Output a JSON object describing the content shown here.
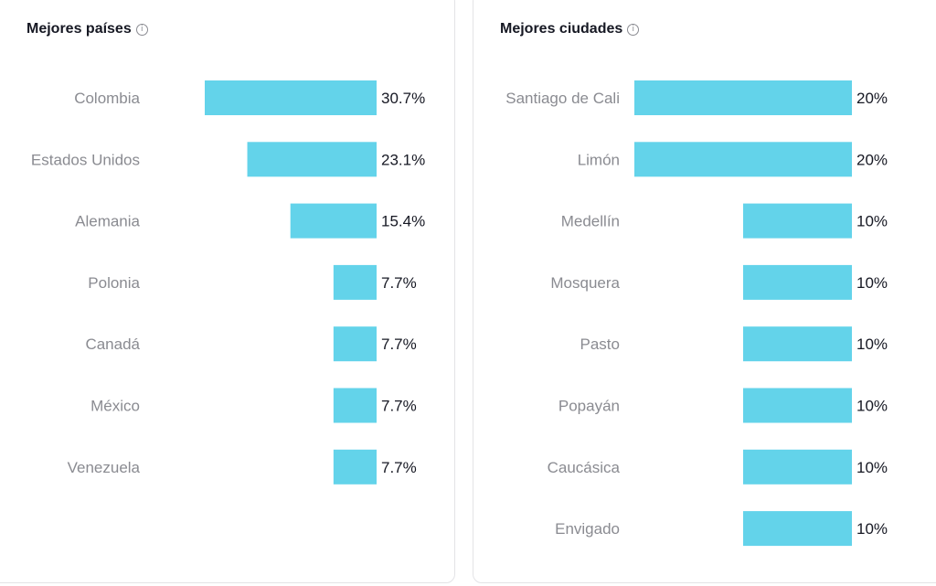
{
  "colors": {
    "bar": "#63d3ea",
    "label": "#8a8b91",
    "value": "#161823"
  },
  "panels": {
    "countries": {
      "title": "Mejores países",
      "info_icon": "info-icon"
    },
    "cities": {
      "title": "Mejores ciudades",
      "info_icon": "info-icon"
    }
  },
  "chart_data": [
    {
      "type": "bar",
      "orientation": "horizontal",
      "title": "Mejores países",
      "categories": [
        "Colombia",
        "Estados Unidos",
        "Alemania",
        "Polonia",
        "Canadá",
        "México",
        "Venezuela"
      ],
      "values": [
        30.7,
        23.1,
        15.4,
        7.7,
        7.7,
        7.7,
        7.7
      ],
      "value_labels": [
        "30.7%",
        "23.1%",
        "15.4%",
        "7.7%",
        "7.7%",
        "7.7%",
        "7.7%"
      ],
      "unit": "%"
    },
    {
      "type": "bar",
      "orientation": "horizontal",
      "title": "Mejores ciudades",
      "categories": [
        "Santiago de Cali",
        "Limón",
        "Medellín",
        "Mosquera",
        "Pasto",
        "Popayán",
        "Caucásica",
        "Envigado"
      ],
      "values": [
        20,
        20,
        10,
        10,
        10,
        10,
        10,
        10
      ],
      "value_labels": [
        "20%",
        "20%",
        "10%",
        "10%",
        "10%",
        "10%",
        "10%",
        "10%"
      ],
      "unit": "%"
    }
  ]
}
